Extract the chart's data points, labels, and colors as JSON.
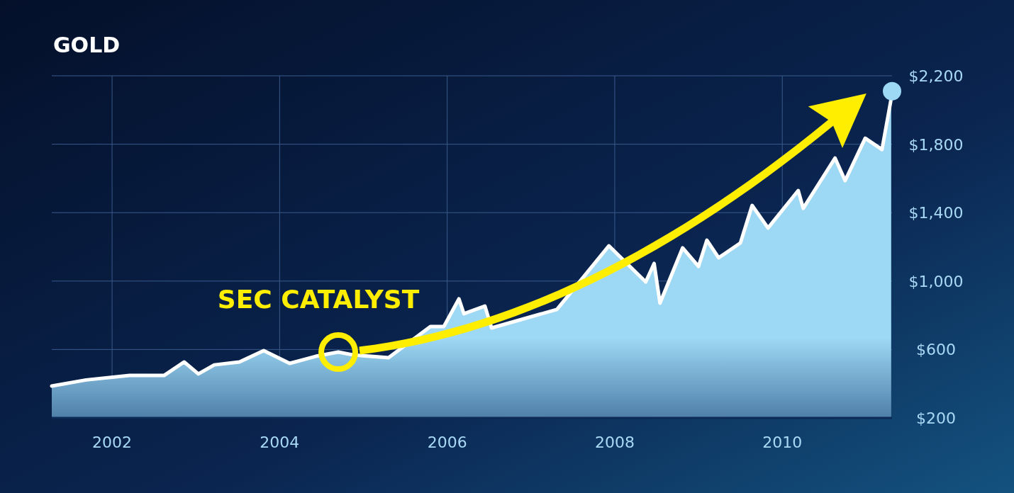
{
  "chart_data": {
    "type": "area",
    "title": "GOLD",
    "xlim": [
      2001.28,
      2011.31
    ],
    "xticks": [
      2002,
      2004,
      2006,
      2008,
      2010
    ],
    "ylim": [
      200,
      2200
    ],
    "yticks": [
      {
        "value": 200,
        "label": "$200"
      },
      {
        "value": 600,
        "label": "$600"
      },
      {
        "value": 1000,
        "label": "$1,000"
      },
      {
        "value": 1400,
        "label": "$1,400"
      },
      {
        "value": 1800,
        "label": "$1,800"
      },
      {
        "value": 2200,
        "label": "$2,200"
      }
    ],
    "grid": true,
    "series": [
      {
        "color": "#9dd8f5",
        "x": [
          2001.28,
          2001.69,
          2002.21,
          2002.62,
          2002.86,
          2003.03,
          2003.22,
          2003.52,
          2003.81,
          2004.12,
          2004.43,
          2004.7,
          2004.88,
          2005.3,
          2005.53,
          2005.8,
          2005.96,
          2006.14,
          2006.2,
          2006.45,
          2006.53,
          2006.74,
          2006.99,
          2007.1,
          2007.31,
          2007.55,
          2007.93,
          2008.05,
          2008.25,
          2008.37,
          2008.47,
          2008.54,
          2008.81,
          2009.0,
          2009.1,
          2009.24,
          2009.5,
          2009.64,
          2009.83,
          2010.19,
          2010.25,
          2010.63,
          2010.75,
          2010.99,
          2011.19,
          2011.3
        ],
        "values": [
          386,
          422,
          448,
          448,
          527,
          457,
          510,
          527,
          593,
          519,
          560,
          585,
          568,
          552,
          null,
          734,
          734,
          896,
          809,
          854,
          726,
          null,
          null,
          null,
          834,
          null,
          1206,
          null,
          null,
          995,
          1103,
          871,
          1194,
          1086,
          1239,
          1136,
          1223,
          1442,
          1310,
          1529,
          1425,
          1719,
          1587,
          1835,
          1769,
          2067
        ]
      },
      {
        "type": "scatter",
        "color": "#9dd8f5",
        "x": [
          2011.31
        ],
        "values": [
          2110
        ]
      }
    ],
    "annotations": [
      {
        "text": "SEC CATALYST",
        "x": 2004.7,
        "y": 585
      }
    ]
  }
}
